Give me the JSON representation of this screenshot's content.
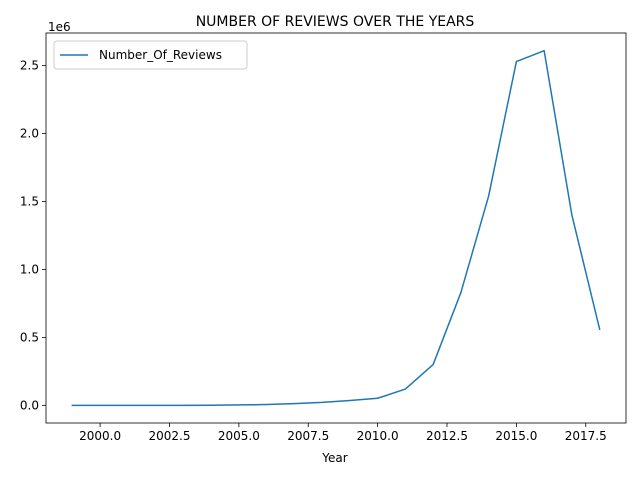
{
  "chart_data": {
    "type": "line",
    "title": "NUMBER OF REVIEWS OVER THE YEARS",
    "xlabel": "Year",
    "ylabel": "",
    "y_scale_label": "1e6",
    "xlim": [
      1998.05,
      2018.95
    ],
    "ylim": [
      -130000,
      2740000
    ],
    "x_ticks": [
      2000.0,
      2002.5,
      2005.0,
      2007.5,
      2010.0,
      2012.5,
      2015.0,
      2017.5
    ],
    "x_tick_labels": [
      "2000.0",
      "2002.5",
      "2005.0",
      "2007.5",
      "2010.0",
      "2012.5",
      "2015.0",
      "2017.5"
    ],
    "y_ticks": [
      0,
      500000,
      1000000,
      1500000,
      2000000,
      2500000
    ],
    "y_tick_labels": [
      "0.0",
      "0.5",
      "1.0",
      "1.5",
      "2.0",
      "2.5"
    ],
    "grid": false,
    "legend_position": "top-left",
    "series": [
      {
        "name": "Number_Of_Reviews",
        "color": "#1f77b4",
        "x": [
          1999,
          2000,
          2001,
          2002,
          2003,
          2004,
          2005,
          2006,
          2007,
          2008,
          2009,
          2010,
          2011,
          2012,
          2013,
          2014,
          2015,
          2016,
          2017,
          2018
        ],
        "y": [
          0,
          0,
          0,
          0,
          0,
          1000,
          3000,
          6000,
          13000,
          22000,
          36000,
          52000,
          120000,
          300000,
          830000,
          1540000,
          2530000,
          2610000,
          1400000,
          560000
        ]
      }
    ]
  }
}
